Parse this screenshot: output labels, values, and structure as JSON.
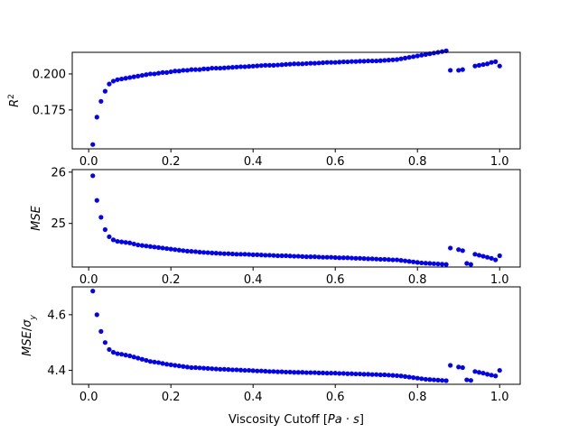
{
  "chart_data": [
    {
      "type": "scatter",
      "title": "",
      "xlabel": "",
      "ylabel": "R^2",
      "xlim": [
        -0.04,
        1.05
      ],
      "ylim": [
        0.148,
        0.215
      ],
      "xticks": [
        "0.0",
        "0.2",
        "0.4",
        "0.6",
        "0.8",
        "1.0"
      ],
      "yticks": [
        {
          "v": 0.175,
          "label": "0.175"
        },
        {
          "v": 0.2,
          "label": "0.200"
        }
      ],
      "color": "#0000ff",
      "grid": false,
      "series": [
        {
          "x": [
            0.01,
            0.02,
            0.03,
            0.04,
            0.05,
            0.06,
            0.07,
            0.08,
            0.09,
            0.1,
            0.11,
            0.12,
            0.13,
            0.14,
            0.15,
            0.16,
            0.17,
            0.18,
            0.19,
            0.2,
            0.21,
            0.22,
            0.23,
            0.24,
            0.25,
            0.26,
            0.27,
            0.28,
            0.29,
            0.3,
            0.31,
            0.32,
            0.33,
            0.34,
            0.35,
            0.36,
            0.37,
            0.38,
            0.39,
            0.4,
            0.41,
            0.42,
            0.43,
            0.44,
            0.45,
            0.46,
            0.47,
            0.48,
            0.49,
            0.5,
            0.51,
            0.52,
            0.53,
            0.54,
            0.55,
            0.56,
            0.57,
            0.58,
            0.59,
            0.6,
            0.61,
            0.62,
            0.63,
            0.64,
            0.65,
            0.66,
            0.67,
            0.68,
            0.69,
            0.7,
            0.71,
            0.72,
            0.73,
            0.74,
            0.75,
            0.76,
            0.77,
            0.78,
            0.79,
            0.8,
            0.81,
            0.82,
            0.83,
            0.84,
            0.85,
            0.86,
            0.87,
            0.88,
            0.89,
            0.9,
            0.91,
            0.92,
            0.93,
            0.94,
            0.95,
            0.96,
            0.97,
            0.98,
            0.99,
            1.0
          ],
          "y": [
            0.151,
            0.17,
            0.181,
            0.188,
            0.193,
            0.195,
            0.196,
            0.1965,
            0.197,
            0.1975,
            0.198,
            0.1985,
            0.199,
            0.1995,
            0.2,
            0.2,
            0.2005,
            0.201,
            0.201,
            0.2015,
            0.202,
            0.202,
            0.2025,
            0.2025,
            0.203,
            0.203,
            0.203,
            0.2035,
            0.2035,
            0.204,
            0.204,
            0.204,
            0.2042,
            0.2044,
            0.2046,
            0.2048,
            0.205,
            0.205,
            0.2052,
            0.2054,
            0.2056,
            0.2058,
            0.206,
            0.206,
            0.206,
            0.2062,
            0.2064,
            0.2066,
            0.2068,
            0.207,
            0.207,
            0.207,
            0.2072,
            0.2074,
            0.2074,
            0.2076,
            0.2078,
            0.208,
            0.208,
            0.208,
            0.2082,
            0.2084,
            0.2084,
            0.2086,
            0.2086,
            0.2088,
            0.2088,
            0.209,
            0.209,
            0.209,
            0.2092,
            0.2094,
            0.2096,
            0.2098,
            0.21,
            0.2105,
            0.211,
            0.2115,
            0.212,
            0.2125,
            0.213,
            0.2135,
            0.214,
            0.2145,
            0.215,
            0.2155,
            0.216,
            0.2025,
            null,
            0.2025,
            0.203,
            null,
            null,
            0.2055,
            0.206,
            0.2065,
            0.207,
            0.208,
            0.2085,
            0.2055
          ]
        }
      ]
    },
    {
      "type": "scatter",
      "title": "",
      "xlabel": "",
      "ylabel": "MSE",
      "xlim": [
        -0.04,
        1.05
      ],
      "ylim": [
        24.15,
        26.05
      ],
      "xticks": [
        "0.0",
        "0.2",
        "0.4",
        "0.6",
        "0.8",
        "1.0"
      ],
      "yticks": [
        {
          "v": 25,
          "label": "25"
        },
        {
          "v": 26,
          "label": "26"
        }
      ],
      "color": "#0000ff",
      "grid": false,
      "series": [
        {
          "x": [
            0.01,
            0.02,
            0.03,
            0.04,
            0.05,
            0.06,
            0.07,
            0.08,
            0.09,
            0.1,
            0.11,
            0.12,
            0.13,
            0.14,
            0.15,
            0.16,
            0.17,
            0.18,
            0.19,
            0.2,
            0.21,
            0.22,
            0.23,
            0.24,
            0.25,
            0.26,
            0.27,
            0.28,
            0.29,
            0.3,
            0.31,
            0.32,
            0.33,
            0.34,
            0.35,
            0.36,
            0.37,
            0.38,
            0.39,
            0.4,
            0.41,
            0.42,
            0.43,
            0.44,
            0.45,
            0.46,
            0.47,
            0.48,
            0.49,
            0.5,
            0.51,
            0.52,
            0.53,
            0.54,
            0.55,
            0.56,
            0.57,
            0.58,
            0.59,
            0.6,
            0.61,
            0.62,
            0.63,
            0.64,
            0.65,
            0.66,
            0.67,
            0.68,
            0.69,
            0.7,
            0.71,
            0.72,
            0.73,
            0.74,
            0.75,
            0.76,
            0.77,
            0.78,
            0.79,
            0.8,
            0.81,
            0.82,
            0.83,
            0.84,
            0.85,
            0.86,
            0.87,
            0.88,
            0.89,
            0.9,
            0.91,
            0.92,
            0.93,
            0.94,
            0.95,
            0.96,
            0.97,
            0.98,
            0.99,
            1.0
          ],
          "y": [
            25.93,
            25.45,
            25.12,
            24.88,
            24.74,
            24.68,
            24.65,
            24.64,
            24.63,
            24.62,
            24.6,
            24.58,
            24.57,
            24.56,
            24.55,
            24.54,
            24.53,
            24.52,
            24.51,
            24.5,
            24.49,
            24.48,
            24.47,
            24.46,
            24.455,
            24.45,
            24.44,
            24.435,
            24.43,
            24.425,
            24.42,
            24.415,
            24.41,
            24.41,
            24.405,
            24.4,
            24.4,
            24.4,
            24.395,
            24.39,
            24.39,
            24.385,
            24.38,
            24.38,
            24.375,
            24.37,
            24.37,
            24.37,
            24.365,
            24.36,
            24.36,
            24.355,
            24.35,
            24.35,
            24.35,
            24.345,
            24.34,
            24.34,
            24.34,
            24.335,
            24.33,
            24.33,
            24.33,
            24.325,
            24.32,
            24.32,
            24.315,
            24.31,
            24.31,
            24.305,
            24.3,
            24.3,
            24.295,
            24.29,
            24.29,
            24.28,
            24.27,
            24.26,
            24.25,
            24.24,
            24.23,
            24.225,
            24.22,
            24.215,
            24.21,
            24.205,
            24.2,
            24.52,
            null,
            24.49,
            24.47,
            24.22,
            24.2,
            24.4,
            24.38,
            24.36,
            24.34,
            24.32,
            24.29,
            24.37
          ]
        }
      ]
    },
    {
      "type": "scatter",
      "title": "",
      "xlabel": "Viscosity Cutoff [Pa·s]",
      "ylabel": "MSE/σ_y",
      "xlim": [
        -0.04,
        1.05
      ],
      "ylim": [
        4.35,
        4.7
      ],
      "xticks": [
        "0.0",
        "0.2",
        "0.4",
        "0.6",
        "0.8",
        "1.0"
      ],
      "yticks": [
        {
          "v": 4.4,
          "label": "4.4"
        },
        {
          "v": 4.6,
          "label": "4.6"
        }
      ],
      "color": "#0000ff",
      "grid": false,
      "series": [
        {
          "x": [
            0.01,
            0.02,
            0.03,
            0.04,
            0.05,
            0.06,
            0.07,
            0.08,
            0.09,
            0.1,
            0.11,
            0.12,
            0.13,
            0.14,
            0.15,
            0.16,
            0.17,
            0.18,
            0.19,
            0.2,
            0.21,
            0.22,
            0.23,
            0.24,
            0.25,
            0.26,
            0.27,
            0.28,
            0.29,
            0.3,
            0.31,
            0.32,
            0.33,
            0.34,
            0.35,
            0.36,
            0.37,
            0.38,
            0.39,
            0.4,
            0.41,
            0.42,
            0.43,
            0.44,
            0.45,
            0.46,
            0.47,
            0.48,
            0.49,
            0.5,
            0.51,
            0.52,
            0.53,
            0.54,
            0.55,
            0.56,
            0.57,
            0.58,
            0.59,
            0.6,
            0.61,
            0.62,
            0.63,
            0.64,
            0.65,
            0.66,
            0.67,
            0.68,
            0.69,
            0.7,
            0.71,
            0.72,
            0.73,
            0.74,
            0.75,
            0.76,
            0.77,
            0.78,
            0.79,
            0.8,
            0.81,
            0.82,
            0.83,
            0.84,
            0.85,
            0.86,
            0.87,
            0.88,
            0.89,
            0.9,
            0.91,
            0.92,
            0.93,
            0.94,
            0.95,
            0.96,
            0.97,
            0.98,
            0.99,
            1.0
          ],
          "y": [
            4.685,
            4.6,
            4.54,
            4.5,
            4.475,
            4.465,
            4.46,
            4.458,
            4.455,
            4.452,
            4.448,
            4.444,
            4.44,
            4.436,
            4.432,
            4.43,
            4.428,
            4.425,
            4.422,
            4.42,
            4.418,
            4.416,
            4.414,
            4.412,
            4.41,
            4.41,
            4.409,
            4.408,
            4.407,
            4.406,
            4.405,
            4.404,
            4.404,
            4.403,
            4.402,
            4.402,
            4.401,
            4.4,
            4.4,
            4.399,
            4.398,
            4.398,
            4.397,
            4.396,
            4.396,
            4.395,
            4.395,
            4.394,
            4.394,
            4.393,
            4.393,
            4.393,
            4.392,
            4.392,
            4.392,
            4.391,
            4.391,
            4.39,
            4.39,
            4.39,
            4.389,
            4.389,
            4.388,
            4.388,
            4.387,
            4.387,
            4.386,
            4.386,
            4.385,
            4.385,
            4.384,
            4.384,
            4.383,
            4.382,
            4.381,
            4.38,
            4.378,
            4.376,
            4.374,
            4.372,
            4.37,
            4.368,
            4.367,
            4.366,
            4.365,
            4.364,
            4.363,
            4.418,
            null,
            4.412,
            4.41,
            4.366,
            4.364,
            4.396,
            4.393,
            4.39,
            4.386,
            4.383,
            4.38,
            4.4
          ]
        }
      ]
    }
  ]
}
